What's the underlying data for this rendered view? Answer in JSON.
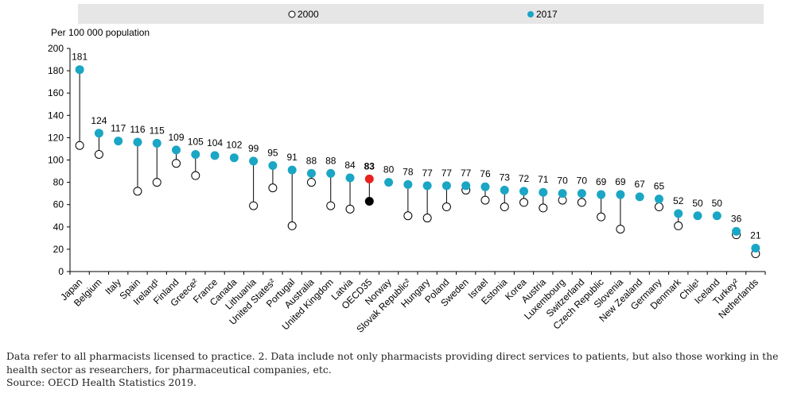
{
  "chart_data": {
    "type": "dumbbell",
    "ylabel": "Per 100 000 population",
    "ylim": [
      0,
      200
    ],
    "yticks": [
      0,
      20,
      40,
      60,
      80,
      100,
      120,
      140,
      160,
      180,
      200
    ],
    "legend_position": "top",
    "series": [
      {
        "name": "2000",
        "color": "#ffffff"
      },
      {
        "name": "2017",
        "color": "#1aa6c4"
      }
    ],
    "highlight": {
      "category": "OECD35",
      "color_2017": "#e8211f",
      "color_2000": "#000000"
    },
    "categories": [
      "Japan",
      "Belgium",
      "Italy",
      "Spain",
      "Ireland¹",
      "Finland",
      "Greece²",
      "France",
      "Canada",
      "Lithuania",
      "United States²",
      "Portugal",
      "Australia",
      "United Kingdom",
      "Latvia",
      "OECD35",
      "Norway",
      "Slovak Republic²",
      "Hungary",
      "Poland",
      "Sweden",
      "Israel",
      "Estonia",
      "Korea",
      "Austria",
      "Luxembourg",
      "Switzerland",
      "Czech Republic",
      "Slovenia",
      "New Zealand",
      "Germany",
      "Denmark",
      "Chile¹",
      "Iceland",
      "Turkey²",
      "Netherlands"
    ],
    "values_2017": [
      181,
      124,
      117,
      116,
      115,
      109,
      105,
      104,
      102,
      99,
      95,
      91,
      88,
      88,
      84,
      83,
      80,
      78,
      77,
      77,
      77,
      76,
      73,
      72,
      71,
      70,
      70,
      69,
      69,
      67,
      65,
      52,
      50,
      50,
      36,
      21
    ],
    "values_2000": [
      113,
      105,
      null,
      72,
      80,
      97,
      86,
      null,
      null,
      59,
      75,
      41,
      80,
      59,
      56,
      63,
      null,
      50,
      48,
      58,
      73,
      64,
      58,
      62,
      57,
      64,
      62,
      49,
      38,
      null,
      58,
      41,
      null,
      null,
      33,
      16
    ],
    "value_labels": [
      "181",
      "124",
      "117",
      "116",
      "115",
      "109",
      "105",
      "104",
      "102",
      "99",
      "95",
      "91",
      "88",
      "88",
      "84",
      "83",
      "80",
      "78",
      "77",
      "77",
      "77",
      "76",
      "73",
      "72",
      "71",
      "70",
      "70",
      "69",
      "69",
      "67",
      "65",
      "52",
      "50",
      "50",
      "36",
      "21"
    ]
  },
  "footnotes": [
    "Data refer to all pharmacists licensed to practice. 2. Data include not only pharmacists providing direct services to patients, but also those working in the health sector as researchers, for pharmaceutical companies, etc.",
    "Source: OECD Health Statistics 2019."
  ]
}
